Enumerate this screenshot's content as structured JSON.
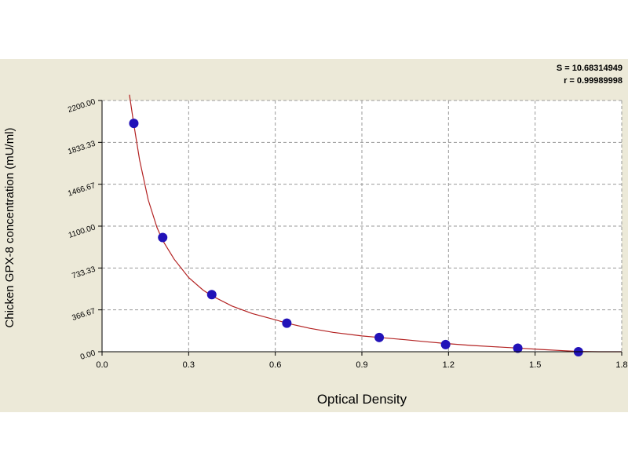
{
  "colors": {
    "panel_bg": "#ece9d8",
    "plot_bg": "#ffffff",
    "grid": "#9a9a9a",
    "curve": "#b32222",
    "point": "#2212b8",
    "axis": "#000000"
  },
  "chart_data": {
    "type": "scatter",
    "xlabel": "Optical Density",
    "ylabel": "Chicken GPX-8 concentration (mU/ml)",
    "stats": [
      "S = 10.68314949",
      "r = 0.99989998"
    ],
    "xlim": [
      0.0,
      1.8
    ],
    "ylim": [
      0.0,
      2200.0
    ],
    "x_ticks": [
      0.0,
      0.3,
      0.6,
      0.9,
      1.2,
      1.5,
      1.8
    ],
    "x_tick_labels": [
      "0.0",
      "0.3",
      "0.6",
      "0.9",
      "1.2",
      "1.5",
      "1.8"
    ],
    "y_ticks": [
      0.0,
      366.67,
      733.33,
      1100.0,
      1466.67,
      1833.33,
      2200.0
    ],
    "y_tick_labels": [
      "0.00",
      "366.67",
      "733.33",
      "1100.00",
      "1466.67",
      "1833.33",
      "2200.00"
    ],
    "grid": true,
    "series": [
      {
        "kind": "points",
        "x": [
          0.11,
          0.21,
          0.38,
          0.64,
          0.96,
          1.19,
          1.44,
          1.65
        ],
        "y": [
          2000,
          1000,
          500,
          250,
          125,
          62.5,
          31.25,
          0
        ]
      },
      {
        "kind": "fitted-curve",
        "x": [
          0.095,
          0.11,
          0.13,
          0.16,
          0.19,
          0.21,
          0.25,
          0.3,
          0.35,
          0.38,
          0.45,
          0.52,
          0.6,
          0.64,
          0.72,
          0.8,
          0.9,
          0.96,
          1.05,
          1.12,
          1.19,
          1.28,
          1.36,
          1.44,
          1.52,
          1.6,
          1.65,
          1.72,
          1.8
        ],
        "y": [
          2250,
          1990,
          1680,
          1330,
          1090,
          975,
          810,
          650,
          540,
          490,
          400,
          335,
          280,
          250,
          205,
          170,
          138,
          125,
          105,
          88,
          72,
          55,
          43,
          32,
          20,
          9,
          3,
          0,
          0
        ]
      }
    ]
  }
}
